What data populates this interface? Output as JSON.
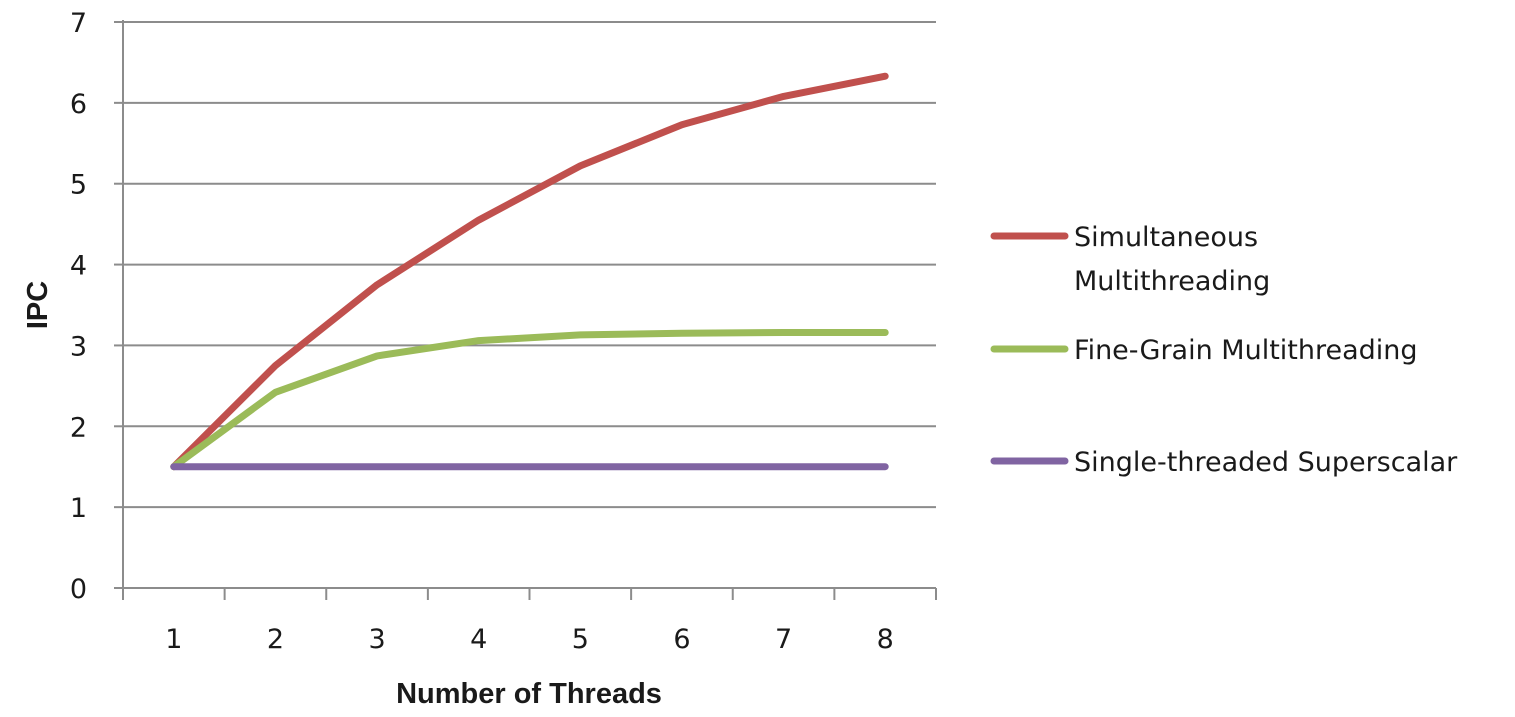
{
  "chart_data": {
    "type": "line",
    "title": "",
    "xlabel": "Number of Threads",
    "ylabel": "IPC",
    "categories": [
      "1",
      "2",
      "3",
      "4",
      "5",
      "6",
      "7",
      "8"
    ],
    "ylim": [
      0,
      7
    ],
    "yticks": [
      "0",
      "1",
      "2",
      "3",
      "4",
      "5",
      "6",
      "7"
    ],
    "grid": true,
    "legend_position": "right",
    "series": [
      {
        "name": "Simultaneous Multithreading",
        "name_lines": [
          "Simultaneous",
          "Multithreading"
        ],
        "color": "#c0504d",
        "values": [
          1.5,
          2.75,
          3.75,
          4.55,
          5.22,
          5.73,
          6.08,
          6.33
        ]
      },
      {
        "name": "Fine-Grain Multithreading",
        "name_lines": [
          "Fine-Grain Multithreading"
        ],
        "color": "#9bbb59",
        "values": [
          1.5,
          2.42,
          2.87,
          3.06,
          3.13,
          3.15,
          3.16,
          3.16
        ]
      },
      {
        "name": "Single-threaded Superscalar",
        "name_lines": [
          "Single-threaded Superscalar"
        ],
        "color": "#8064a2",
        "values": [
          1.5,
          1.5,
          1.5,
          1.5,
          1.5,
          1.5,
          1.5,
          1.5
        ]
      }
    ]
  }
}
